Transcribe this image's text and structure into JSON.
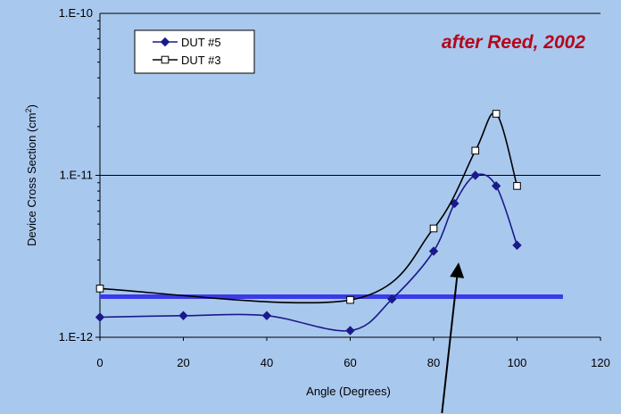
{
  "chart_data": {
    "type": "line",
    "title": "",
    "annotation": "after Reed, 2002",
    "xlabel": "Angle (Degrees)",
    "ylabel": "Device Cross Section (cm",
    "ylabel_sup": "2",
    "ylabel_close": ")",
    "xlim": [
      0,
      120
    ],
    "ylim": [
      1e-12,
      1e-10
    ],
    "yscale": "log",
    "x_ticks": [
      "0",
      "20",
      "40",
      "60",
      "80",
      "100",
      "120"
    ],
    "y_ticks": [
      "1.E-12",
      "1.E-11",
      "1.E-10"
    ],
    "grid": "horizontal major",
    "legend": "top-left",
    "series": [
      {
        "name": "DUT #5",
        "color": "#1a1a8a",
        "marker": "filled-diamond",
        "x": [
          0,
          20,
          40,
          60,
          70,
          80,
          85,
          90,
          95,
          100
        ],
        "y": [
          1.33e-12,
          1.36e-12,
          1.36e-12,
          1.1e-12,
          1.72e-12,
          3.4e-12,
          6.7e-12,
          1e-11,
          8.6e-12,
          3.7e-12
        ]
      },
      {
        "name": "DUT #3",
        "color": "#000000",
        "marker": "open-square",
        "x": [
          0,
          60,
          80,
          90,
          95,
          100
        ],
        "y": [
          2e-12,
          1.7e-12,
          4.7e-12,
          1.42e-11,
          2.4e-11,
          8.6e-12
        ]
      }
    ],
    "threshold_line": {
      "y": 1.78e-12,
      "x": [
        0,
        111
      ],
      "color": "#3a3ae8"
    },
    "arrow": {
      "from": [
        82,
        2e-13
      ],
      "to": [
        86,
        2.9e-12
      ],
      "color": "#000000"
    }
  }
}
